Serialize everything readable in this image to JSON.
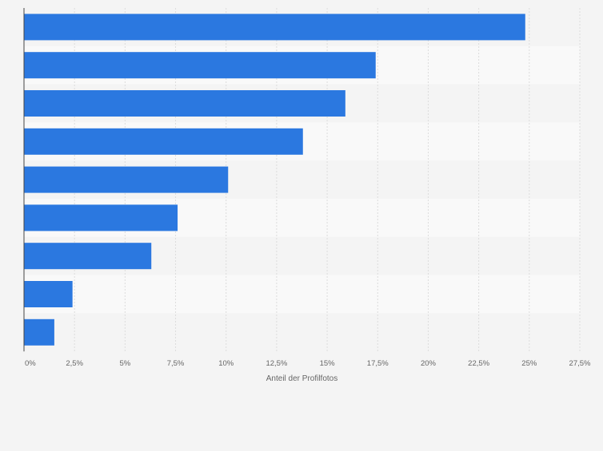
{
  "chart_data": {
    "type": "bar",
    "orientation": "horizontal",
    "categories": [
      "",
      "",
      "",
      "",
      "",
      "",
      "",
      "",
      ""
    ],
    "values": [
      24.8,
      17.4,
      15.9,
      13.8,
      10.1,
      7.6,
      6.3,
      2.4,
      1.5
    ],
    "title": "",
    "xlabel": "Anteil der Profilfotos",
    "ylabel": "",
    "xlim": [
      0,
      27.5
    ],
    "x_ticks": [
      0,
      2.5,
      5,
      7.5,
      10,
      12.5,
      15,
      17.5,
      20,
      22.5,
      25,
      27.5
    ],
    "x_tick_labels": [
      "0%",
      "2,5%",
      "5%",
      "7,5%",
      "10%",
      "12,5%",
      "15%",
      "17,5%",
      "20%",
      "22,5%",
      "25%",
      "27,5%"
    ],
    "grid": true,
    "bar_color": "#2b78e0",
    "band_colors": [
      "#f4f4f4",
      "#f9f9f9"
    ]
  }
}
